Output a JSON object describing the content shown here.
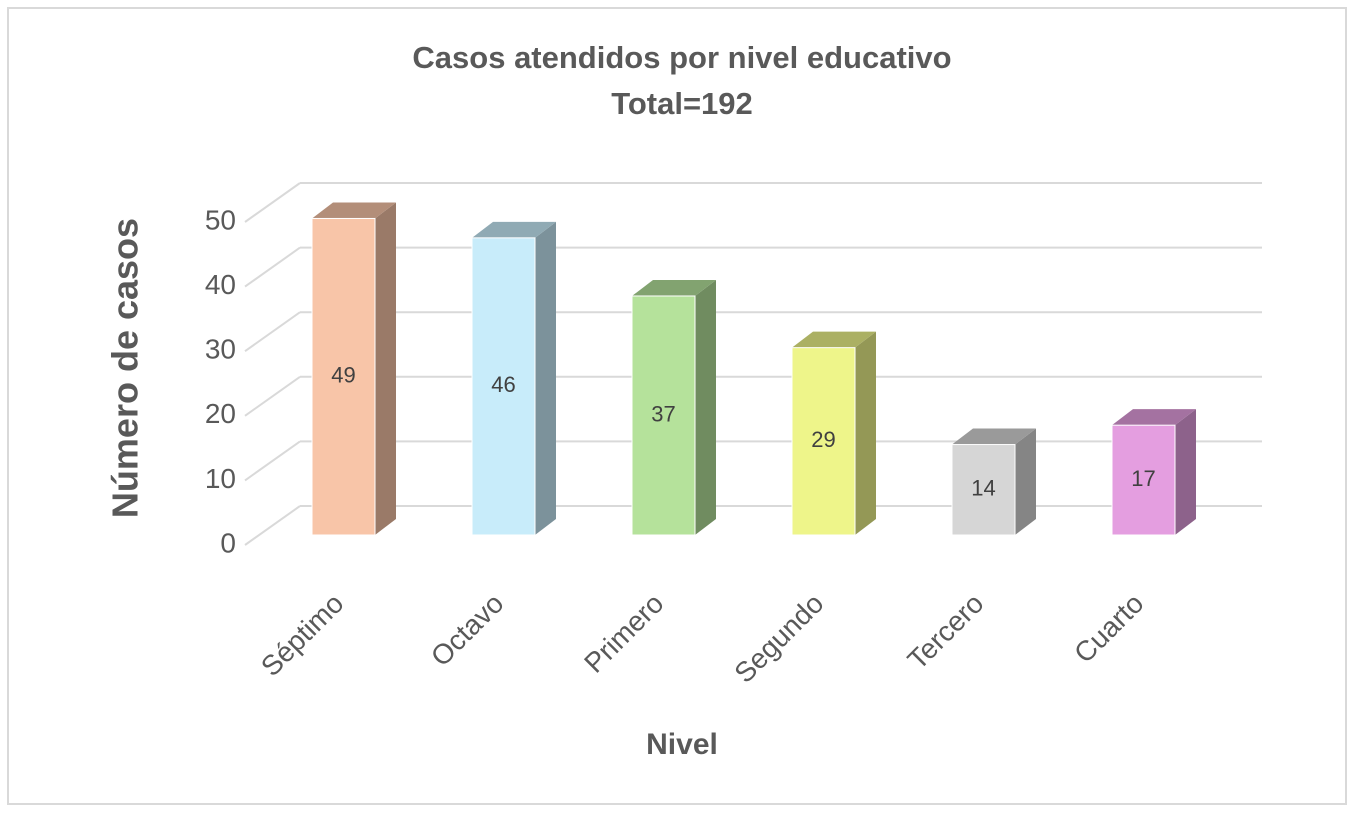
{
  "chart_data": {
    "type": "bar3d",
    "title": "Casos atendidos por nivel educativo",
    "subtitle": "Total=192",
    "x_label": "Nivel",
    "y_label": "Número de casos",
    "categories": [
      "Séptimo",
      "Octavo",
      "Primero",
      "Segundo",
      "Tercero",
      "Cuarto"
    ],
    "values": [
      49,
      46,
      37,
      29,
      14,
      17
    ],
    "colors": [
      "#f8c5a8",
      "#c8ecfa",
      "#b5e29b",
      "#eef58a",
      "#d6d6d6",
      "#e49ee0"
    ],
    "ylim": [
      0,
      50
    ],
    "yticks": [
      0,
      10,
      20,
      30,
      40,
      50
    ],
    "grid": true
  }
}
